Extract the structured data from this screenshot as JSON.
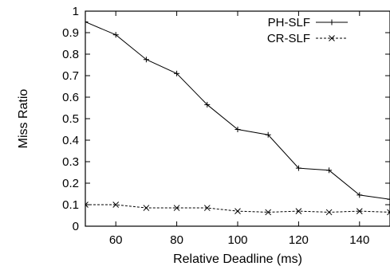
{
  "chart_data": {
    "type": "line",
    "xlabel": "Relative Deadline (ms)",
    "ylabel": "Miss Ratio",
    "xlim": [
      50,
      150
    ],
    "ylim": [
      0,
      1
    ],
    "x_ticks": [
      60,
      80,
      100,
      120,
      140
    ],
    "y_ticks": [
      0,
      0.1,
      0.2,
      0.3,
      0.4,
      0.5,
      0.6,
      0.7,
      0.8,
      0.9,
      1
    ],
    "grid": false,
    "legend_position": "top-right",
    "x": [
      50,
      60,
      70,
      80,
      90,
      100,
      110,
      120,
      130,
      140,
      150
    ],
    "series": [
      {
        "name": "PH-SLF",
        "marker": "plus",
        "line_style": "solid",
        "values": [
          0.95,
          0.89,
          0.775,
          0.71,
          0.565,
          0.45,
          0.425,
          0.27,
          0.26,
          0.145,
          0.125
        ]
      },
      {
        "name": "CR-SLF",
        "marker": "cross",
        "line_style": "dashed",
        "values": [
          0.1,
          0.1,
          0.085,
          0.085,
          0.085,
          0.07,
          0.065,
          0.07,
          0.065,
          0.07,
          0.065
        ]
      }
    ]
  }
}
